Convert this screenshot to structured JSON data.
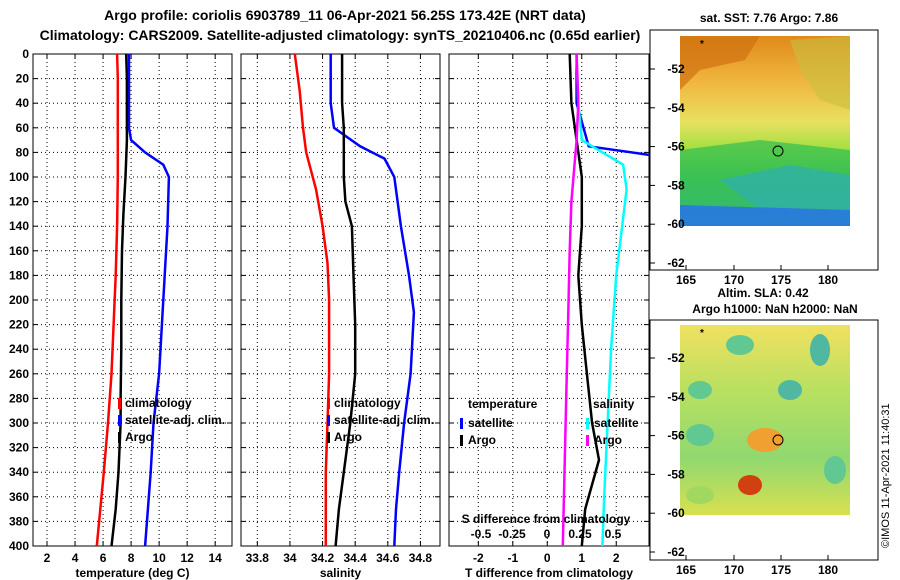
{
  "title_line1": "Argo profile: coriolis 6903789_11 06-Apr-2021 56.25S 173.42E (NRT data)",
  "title_line2": "Climatology: CARS2009. Satellite-adjusted climatology: synTS_20210406.nc (0.65d earlier)",
  "credit": "©IMOS 11-Apr-2021 11:40:31",
  "colors": {
    "red": "#ff0000",
    "blue": "#0000ff",
    "black": "#000000",
    "magenta": "#ff00ff",
    "cyan": "#00ffff"
  },
  "chart_data": [
    {
      "id": "temperature",
      "type": "line",
      "xlabel": "temperature (deg C)",
      "xlim": [
        1,
        15.2
      ],
      "xticks": [
        2,
        4,
        6,
        8,
        10,
        12,
        14
      ],
      "xticklabels": [
        "2",
        "4",
        "6",
        "8",
        "10",
        "12",
        "14"
      ],
      "ylim": [
        0,
        400
      ],
      "yticks": [
        0,
        20,
        40,
        60,
        80,
        100,
        120,
        140,
        160,
        180,
        200,
        220,
        240,
        260,
        280,
        300,
        320,
        340,
        360,
        380,
        400
      ],
      "yticklabels": [
        "0",
        "20",
        "40",
        "60",
        "80",
        "100",
        "120",
        "140",
        "160",
        "180",
        "200",
        "220",
        "240",
        "260",
        "280",
        "300",
        "320",
        "340",
        "360",
        "380",
        "400"
      ],
      "legend": [
        {
          "label": "climatology",
          "color": "red"
        },
        {
          "label": "satellite-adj. clim.",
          "color": "blue"
        },
        {
          "label": "Argo",
          "color": "black"
        }
      ],
      "series": [
        {
          "name": "climatology",
          "color": "red",
          "points": [
            [
              7.0,
              0
            ],
            [
              7.05,
              20
            ],
            [
              7.05,
              60
            ],
            [
              7.05,
              100
            ],
            [
              7.0,
              140
            ],
            [
              6.9,
              180
            ],
            [
              6.75,
              220
            ],
            [
              6.6,
              260
            ],
            [
              6.35,
              300
            ],
            [
              6.05,
              340
            ],
            [
              5.8,
              370
            ],
            [
              5.55,
              400
            ]
          ]
        },
        {
          "name": "satellite-adj. clim.",
          "color": "blue",
          "points": [
            [
              7.85,
              0
            ],
            [
              7.85,
              20
            ],
            [
              7.85,
              60
            ],
            [
              8.0,
              70
            ],
            [
              9.0,
              80
            ],
            [
              10.3,
              90
            ],
            [
              10.7,
              100
            ],
            [
              10.6,
              140
            ],
            [
              10.4,
              180
            ],
            [
              10.2,
              220
            ],
            [
              10.0,
              260
            ],
            [
              9.6,
              300
            ],
            [
              9.4,
              340
            ],
            [
              9.2,
              370
            ],
            [
              9.0,
              400
            ]
          ]
        },
        {
          "name": "Argo",
          "color": "black",
          "points": [
            [
              7.65,
              0
            ],
            [
              7.7,
              20
            ],
            [
              7.7,
              60
            ],
            [
              7.7,
              70
            ],
            [
              7.6,
              100
            ],
            [
              7.45,
              130
            ],
            [
              7.35,
              160
            ],
            [
              7.3,
              200
            ],
            [
              7.3,
              240
            ],
            [
              7.25,
              280
            ],
            [
              7.25,
              300
            ],
            [
              7.1,
              340
            ],
            [
              6.9,
              370
            ],
            [
              6.6,
              400
            ]
          ]
        }
      ]
    },
    {
      "id": "salinity",
      "type": "line",
      "xlabel": "salinity",
      "xlim": [
        33.7,
        34.92
      ],
      "xticks": [
        33.8,
        34,
        34.2,
        34.4,
        34.6,
        34.8
      ],
      "xticklabels": [
        "33.8",
        "34",
        "34.2",
        "34.4",
        "34.6",
        "34.8"
      ],
      "ylim": [
        0,
        400
      ],
      "legend": [
        {
          "label": "climatology",
          "color": "red"
        },
        {
          "label": "satellite-adj. clim.",
          "color": "blue"
        },
        {
          "label": "Argo",
          "color": "black"
        }
      ],
      "series": [
        {
          "name": "climatology",
          "color": "red",
          "points": [
            [
              34.03,
              0
            ],
            [
              34.06,
              30
            ],
            [
              34.08,
              60
            ],
            [
              34.1,
              80
            ],
            [
              34.16,
              110
            ],
            [
              34.2,
              140
            ],
            [
              34.23,
              170
            ],
            [
              34.24,
              200
            ],
            [
              34.24,
              260
            ],
            [
              34.23,
              300
            ],
            [
              34.22,
              340
            ],
            [
              34.22,
              370
            ],
            [
              34.22,
              400
            ]
          ]
        },
        {
          "name": "satellite-adj. clim.",
          "color": "blue",
          "points": [
            [
              34.25,
              0
            ],
            [
              34.25,
              40
            ],
            [
              34.27,
              60
            ],
            [
              34.43,
              75
            ],
            [
              34.58,
              85
            ],
            [
              34.64,
              100
            ],
            [
              34.68,
              140
            ],
            [
              34.73,
              180
            ],
            [
              34.76,
              210
            ],
            [
              34.74,
              260
            ],
            [
              34.7,
              300
            ],
            [
              34.67,
              340
            ],
            [
              34.65,
              370
            ],
            [
              34.64,
              400
            ]
          ]
        },
        {
          "name": "Argo",
          "color": "black",
          "points": [
            [
              34.32,
              0
            ],
            [
              34.32,
              40
            ],
            [
              34.33,
              60
            ],
            [
              34.33,
              100
            ],
            [
              34.34,
              120
            ],
            [
              34.38,
              140
            ],
            [
              34.39,
              180
            ],
            [
              34.4,
              220
            ],
            [
              34.4,
              260
            ],
            [
              34.37,
              300
            ],
            [
              34.33,
              340
            ],
            [
              34.3,
              370
            ],
            [
              34.28,
              400
            ]
          ]
        }
      ]
    },
    {
      "id": "difference",
      "type": "line",
      "xlabel": "T difference from climatology",
      "xlim": [
        -2.85,
        2.95
      ],
      "xticks": [
        -2,
        -1,
        0,
        1,
        2
      ],
      "xticklabels": [
        "-2",
        "-1",
        "0",
        "1",
        "2"
      ],
      "top_axis_label": "S difference from climatology",
      "top_ticklabels": [
        "-0.5",
        "-0.25",
        "0",
        "0.25",
        "0.5"
      ],
      "ylim": [
        0,
        400
      ],
      "legend_temperature_title": "temperature",
      "legend_salinity_title": "salinity",
      "legend": [
        {
          "label": "satellite",
          "color": "blue",
          "group": "temperature"
        },
        {
          "label": "Argo",
          "color": "black",
          "group": "temperature"
        },
        {
          "label": "satellite",
          "color": "cyan",
          "group": "salinity"
        },
        {
          "label": "Argo",
          "color": "magenta",
          "group": "salinity"
        }
      ],
      "series": [
        {
          "name": "T satellite",
          "color": "blue",
          "points": [
            [
              0.85,
              0
            ],
            [
              0.85,
              40
            ],
            [
              1.2,
              75
            ],
            [
              2.95,
              82
            ]
          ]
        },
        {
          "name": "T Argo",
          "color": "black",
          "points": [
            [
              0.65,
              0
            ],
            [
              0.7,
              40
            ],
            [
              0.85,
              70
            ],
            [
              1.0,
              100
            ],
            [
              1.0,
              140
            ],
            [
              0.9,
              180
            ],
            [
              1.0,
              220
            ],
            [
              1.15,
              260
            ],
            [
              1.3,
              300
            ],
            [
              1.5,
              330
            ],
            [
              1.1,
              370
            ],
            [
              1.0,
              400
            ]
          ]
        },
        {
          "name": "S satellite",
          "color": "cyan",
          "points": [
            [
              0.85,
              0
            ],
            [
              0.9,
              40
            ],
            [
              1.0,
              70
            ],
            [
              2.2,
              90
            ],
            [
              2.3,
              110
            ],
            [
              2.0,
              180
            ],
            [
              1.85,
              240
            ],
            [
              1.75,
              300
            ],
            [
              1.65,
              360
            ],
            [
              1.6,
              400
            ]
          ]
        },
        {
          "name": "S Argo",
          "color": "magenta",
          "points": [
            [
              0.85,
              0
            ],
            [
              0.9,
              40
            ],
            [
              0.85,
              70
            ],
            [
              0.7,
              120
            ],
            [
              0.65,
              160
            ],
            [
              0.6,
              220
            ],
            [
              0.55,
              280
            ],
            [
              0.5,
              340
            ],
            [
              0.45,
              400
            ]
          ]
        }
      ]
    },
    {
      "id": "sst_map",
      "type": "heatmap",
      "title": "sat. SST: 7.76 Argo: 7.86",
      "xticklabels": [
        "165",
        "170",
        "175",
        "180"
      ],
      "yticklabels": [
        "-52",
        "-54",
        "-56",
        "-58",
        "-60",
        "-62"
      ]
    },
    {
      "id": "sla_map",
      "type": "heatmap",
      "title": "Altim. SLA: 0.42",
      "subtitle": "Argo h1000: NaN h2000: NaN",
      "xticklabels": [
        "165",
        "170",
        "175",
        "180"
      ],
      "yticklabels": [
        "-52",
        "-54",
        "-56",
        "-58",
        "-60",
        "-62"
      ]
    }
  ]
}
